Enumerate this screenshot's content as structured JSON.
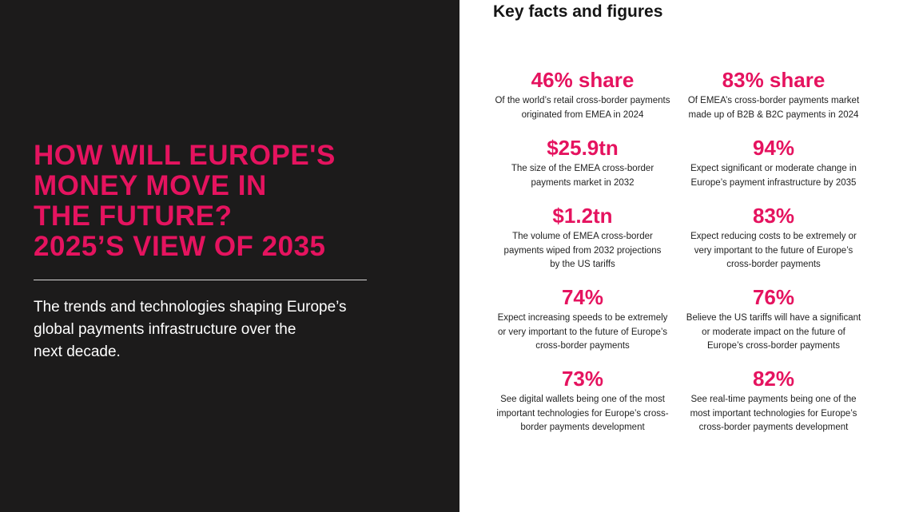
{
  "left": {
    "title_lines": [
      "HOW WILL EUROPE'S",
      "MONEY MOVE IN",
      "THE FUTURE?",
      "2025’S VIEW OF 2035"
    ],
    "subtitle_lines": [
      "The trends and technologies shaping Europe’s",
      "global payments infrastructure over the",
      "next decade."
    ]
  },
  "right": {
    "heading": "Key facts and figures",
    "facts": [
      {
        "value": "46% share",
        "lines": [
          "Of the world’s retail cross-border payments",
          "originated from EMEA in 2024"
        ]
      },
      {
        "value": "83% share",
        "lines": [
          "Of EMEA’s cross-border payments market",
          "made up of B2B & B2C payments in 2024"
        ]
      },
      {
        "value": "$25.9tn",
        "lines": [
          "The size of the EMEA cross-border",
          "payments market in 2032"
        ]
      },
      {
        "value": "94%",
        "lines": [
          "Expect significant or moderate change in",
          "Europe’s payment infrastructure by 2035"
        ]
      },
      {
        "value": "$1.2tn",
        "lines": [
          "The volume of EMEA cross-border",
          "payments wiped from 2032 projections",
          "by the US tariffs"
        ]
      },
      {
        "value": "83%",
        "lines": [
          "Expect reducing costs to be extremely or",
          "very important to the future of Europe’s",
          "cross-border payments"
        ]
      },
      {
        "value": "74%",
        "lines": [
          "Expect increasing speeds to be extremely",
          "or very important to the future of Europe’s",
          "cross-border payments"
        ]
      },
      {
        "value": "76%",
        "lines": [
          "Believe the US tariffs will have a significant",
          "or moderate impact on the future of",
          "Europe’s cross-border payments"
        ]
      },
      {
        "value": "73%",
        "lines": [
          "See digital wallets being one of the most",
          "important technologies for Europe’s cross-",
          "border payments development"
        ]
      },
      {
        "value": "82%",
        "lines": [
          "See real-time payments being one of the",
          "most important technologies for Europe’s",
          "cross-border payments development"
        ]
      }
    ]
  },
  "colors": {
    "accent": "#e5135f",
    "dark_panel": "#1c1b1b"
  }
}
